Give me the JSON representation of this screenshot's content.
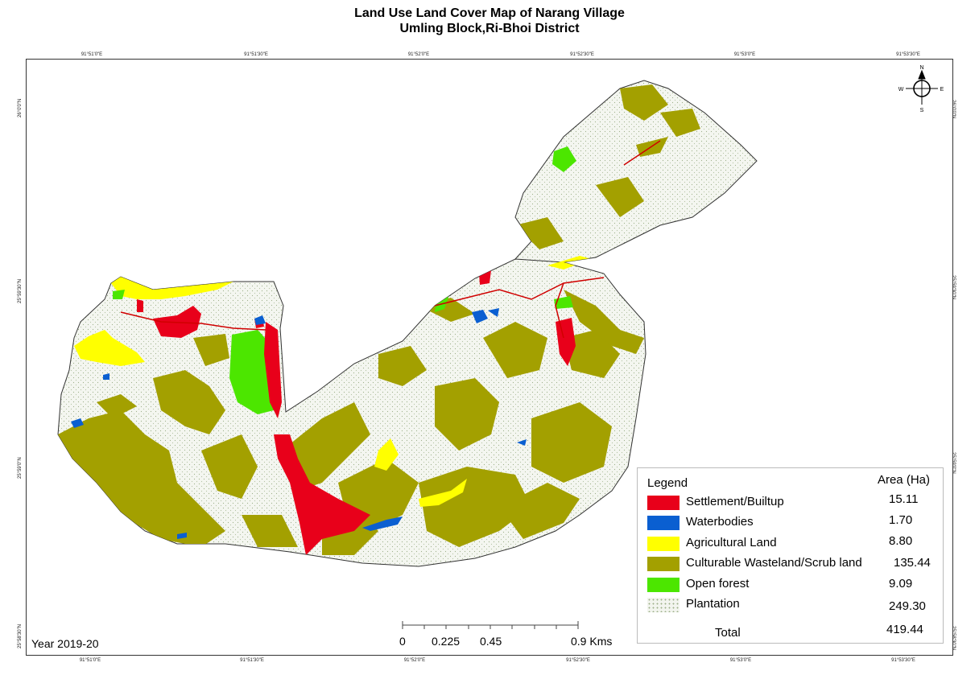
{
  "title": {
    "line1": "Land Use Land Cover Map of Narang Village",
    "line2": "Umling Block,Ri-Bhoi District"
  },
  "graticule": {
    "longitudes": [
      "91°51'0\"E",
      "91°51'30\"E",
      "91°52'0\"E",
      "91°52'30\"E",
      "91°53'0\"E",
      "91°53'30\"E"
    ],
    "latitudes": [
      "26°0'0\"N",
      "25°59'30\"N",
      "25°59'0\"N",
      "25°58'30\"N"
    ]
  },
  "north_arrow": {
    "n": "N",
    "s": "S",
    "e": "E",
    "w": "W"
  },
  "legend": {
    "title": "Legend",
    "area_header": "Area (Ha)",
    "items": [
      {
        "label": "Settlement/Builtup",
        "area": "15.11",
        "color": "#e8001a"
      },
      {
        "label": "Waterbodies",
        "area": "1.70",
        "color": "#0a5fd1"
      },
      {
        "label": "Agricultural Land",
        "area": "8.80",
        "color": "#ffff00"
      },
      {
        "label": "Culturable Wasteland/Scrub land",
        "area": "135.44",
        "color": "#a3a000"
      },
      {
        "label": "Open forest",
        "area": "9.09",
        "color": "#4ce600"
      },
      {
        "label": "Plantation",
        "area": "249.30",
        "color": "#f2f4ee"
      }
    ],
    "total_label": "Total",
    "total_value": "419.44"
  },
  "year": "Year 2019-20",
  "scale_bar": {
    "labels": [
      "0",
      "0.225",
      "0.45",
      "0.9 Kms"
    ]
  }
}
